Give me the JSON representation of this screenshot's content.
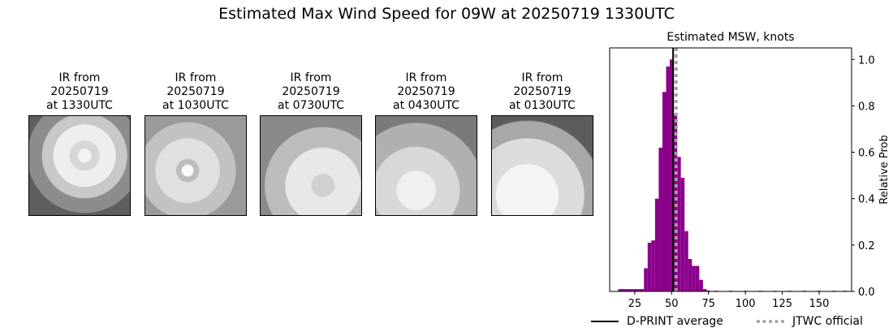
{
  "title": "Estimated Max Wind Speed for 09W at 20250719 1330UTC",
  "ir_panels": [
    {
      "line1": "IR from",
      "line2": "20250719",
      "line3": "at 1330UTC",
      "icon": "satellite-ir-image"
    },
    {
      "line1": "IR from",
      "line2": "20250719",
      "line3": "at 1030UTC",
      "icon": "satellite-ir-image"
    },
    {
      "line1": "IR from",
      "line2": "20250719",
      "line3": "at 0730UTC",
      "icon": "satellite-ir-image"
    },
    {
      "line1": "IR from",
      "line2": "20250719",
      "line3": "at 0430UTC",
      "icon": "satellite-ir-image"
    },
    {
      "line1": "IR from",
      "line2": "20250719",
      "line3": "at 0130UTC",
      "icon": "satellite-ir-image"
    }
  ],
  "chart_data": {
    "type": "bar",
    "title": "Estimated MSW, knots",
    "xlabel": "",
    "ylabel": "Relative Prob",
    "xlim": [
      8,
      172
    ],
    "ylim": [
      0,
      1.05
    ],
    "xticks": [
      25,
      50,
      75,
      100,
      125,
      150
    ],
    "yticks": [
      0.0,
      0.2,
      0.4,
      0.6,
      0.8,
      1.0
    ],
    "bin_width": 2.5,
    "bins": [
      {
        "x": 15,
        "value": 0.01
      },
      {
        "x": 17.5,
        "value": 0.01
      },
      {
        "x": 20,
        "value": 0.01
      },
      {
        "x": 22.5,
        "value": 0.01
      },
      {
        "x": 25,
        "value": 0.01
      },
      {
        "x": 27.5,
        "value": 0.01
      },
      {
        "x": 30,
        "value": 0.01
      },
      {
        "x": 32.5,
        "value": 0.1
      },
      {
        "x": 35,
        "value": 0.21
      },
      {
        "x": 37.5,
        "value": 0.22
      },
      {
        "x": 40,
        "value": 0.4
      },
      {
        "x": 42.5,
        "value": 0.62
      },
      {
        "x": 45,
        "value": 0.86
      },
      {
        "x": 47.5,
        "value": 0.97
      },
      {
        "x": 50,
        "value": 1.0
      },
      {
        "x": 52.5,
        "value": 0.76
      },
      {
        "x": 55,
        "value": 0.58
      },
      {
        "x": 57.5,
        "value": 0.49
      },
      {
        "x": 60,
        "value": 0.26
      },
      {
        "x": 62.5,
        "value": 0.14
      },
      {
        "x": 65,
        "value": 0.11
      },
      {
        "x": 67.5,
        "value": 0.11
      },
      {
        "x": 70,
        "value": 0.05
      },
      {
        "x": 72.5,
        "value": 0.01
      },
      {
        "x": 75,
        "value": 0.004
      },
      {
        "x": 80,
        "value": 0.003
      },
      {
        "x": 90,
        "value": 0.003
      },
      {
        "x": 100,
        "value": 0.003
      },
      {
        "x": 110,
        "value": 0.003
      },
      {
        "x": 120,
        "value": 0.003
      },
      {
        "x": 130,
        "value": 0.003
      },
      {
        "x": 140,
        "value": 0.003
      },
      {
        "x": 150,
        "value": 0.003
      },
      {
        "x": 160,
        "value": 0.003
      },
      {
        "x": 167.5,
        "value": 0.003
      }
    ],
    "bar_color": "#8b008b",
    "lines": [
      {
        "name": "D-PRINT average",
        "x": 51,
        "color": "#000000",
        "style": "solid"
      },
      {
        "name": "JTWC official",
        "x": 53,
        "color": "#a0a0a0",
        "style": "dotted"
      }
    ],
    "legend_position": "bottom-right"
  }
}
